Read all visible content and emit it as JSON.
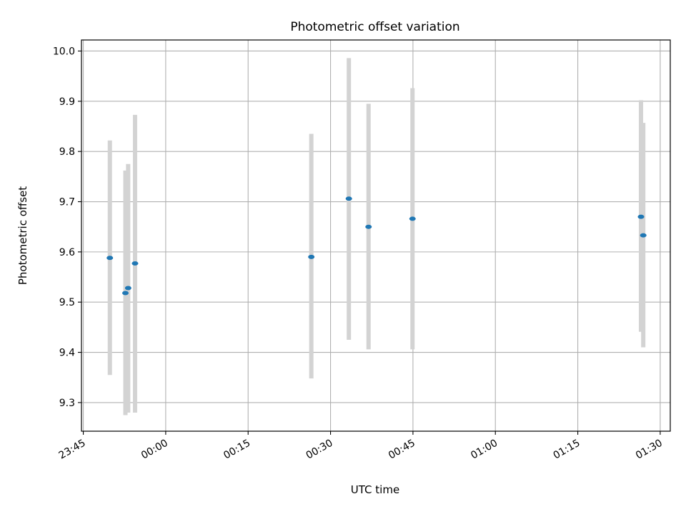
{
  "chart_data": {
    "type": "scatter",
    "title": "Photometric offset variation",
    "xlabel": "UTC time",
    "ylabel": "Photometric offset",
    "x_ticks": [
      "23:45",
      "00:00",
      "00:15",
      "00:30",
      "00:45",
      "01:00",
      "01:15",
      "01:30"
    ],
    "y_ticks": [
      "9.3",
      "9.4",
      "9.5",
      "9.6",
      "9.7",
      "9.8",
      "9.9",
      "10.0"
    ],
    "xlim": [
      "23:44:40",
      "01:31:50"
    ],
    "ylim": [
      9.243,
      10.022
    ],
    "grid": true,
    "point_color": "#1f77b4",
    "errorbar_color": "#d3d3d3",
    "points": [
      {
        "x": "23:49:50",
        "y": 9.588,
        "yerr_low": 9.355,
        "yerr_high": 9.822
      },
      {
        "x": "23:52:40",
        "y": 9.518,
        "yerr_low": 9.275,
        "yerr_high": 9.762
      },
      {
        "x": "23:53:10",
        "y": 9.528,
        "yerr_low": 9.28,
        "yerr_high": 9.775
      },
      {
        "x": "23:54:25",
        "y": 9.577,
        "yerr_low": 9.28,
        "yerr_high": 9.873
      },
      {
        "x": "00:26:30",
        "y": 9.59,
        "yerr_low": 9.348,
        "yerr_high": 9.835
      },
      {
        "x": "00:33:20",
        "y": 9.706,
        "yerr_low": 9.425,
        "yerr_high": 9.986
      },
      {
        "x": "00:36:55",
        "y": 9.65,
        "yerr_low": 9.406,
        "yerr_high": 9.895
      },
      {
        "x": "00:44:55",
        "y": 9.666,
        "yerr_low": 9.406,
        "yerr_high": 9.926
      },
      {
        "x": "01:26:30",
        "y": 9.67,
        "yerr_low": 9.441,
        "yerr_high": 9.902
      },
      {
        "x": "01:26:55",
        "y": 9.633,
        "yerr_low": 9.41,
        "yerr_high": 9.857
      }
    ]
  }
}
